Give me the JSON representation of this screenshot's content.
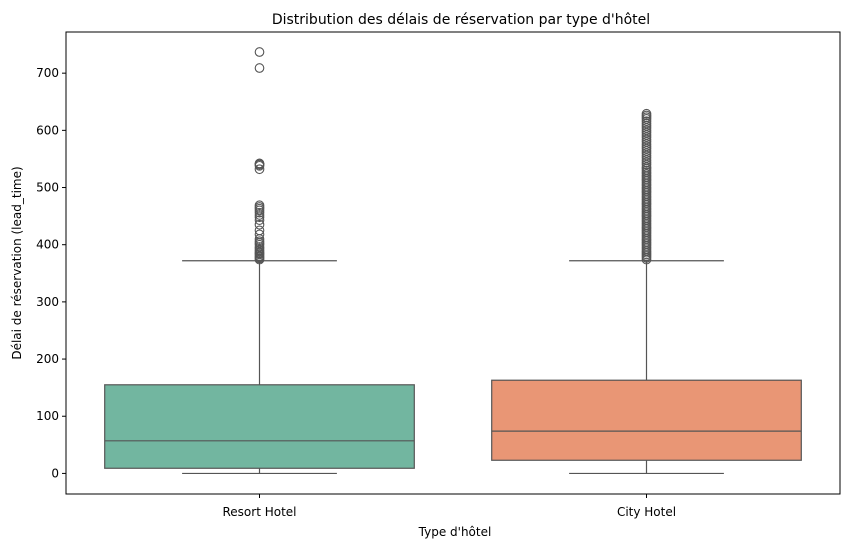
{
  "chart_data": {
    "type": "box",
    "title": "Distribution des délais de réservation par type d'hôtel",
    "xlabel": "Type d'hôtel",
    "ylabel": "Délai de réservation (lead_time)",
    "ylim": [
      -36,
      772
    ],
    "yticks": [
      0,
      100,
      200,
      300,
      400,
      500,
      600,
      700
    ],
    "grid": false,
    "legend": "none",
    "categories": [
      "Resort Hotel",
      "City Hotel"
    ],
    "boxes": [
      {
        "category": "Resort Hotel",
        "color": "#72b6a0",
        "min": 0,
        "q1": 9,
        "median": 57,
        "q3": 155,
        "max": 372,
        "outliers": [
          374,
          376,
          378,
          380,
          383,
          385,
          387,
          390,
          393,
          396,
          400,
          403,
          406,
          410,
          418,
          425,
          435,
          443,
          448,
          452,
          456,
          460,
          463,
          466,
          469,
          532,
          538,
          540,
          542,
          542,
          709,
          737
        ]
      },
      {
        "category": "City Hotel",
        "color": "#e99675",
        "min": 0,
        "q1": 23,
        "median": 74,
        "q3": 163,
        "max": 372,
        "outliers": [
          374,
          377,
          380,
          383,
          386,
          389,
          392,
          395,
          398,
          401,
          404,
          407,
          410,
          413,
          416,
          419,
          422,
          425,
          428,
          431,
          434,
          437,
          440,
          443,
          446,
          449,
          452,
          455,
          458,
          461,
          464,
          467,
          470,
          473,
          476,
          479,
          482,
          485,
          488,
          491,
          494,
          497,
          500,
          503,
          506,
          509,
          512,
          515,
          518,
          521,
          524,
          527,
          530,
          533,
          536,
          540,
          544,
          548,
          552,
          556,
          560,
          564,
          568,
          572,
          576,
          580,
          584,
          588,
          592,
          596,
          600,
          604,
          608,
          612,
          616,
          620,
          623,
          626,
          629
        ]
      }
    ]
  }
}
